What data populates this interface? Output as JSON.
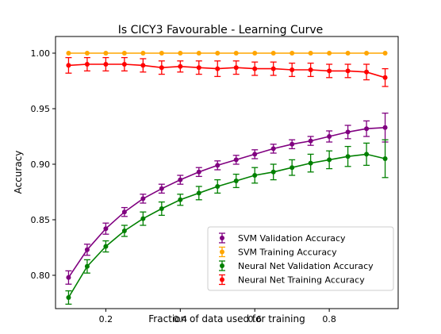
{
  "chart_data": {
    "type": "line",
    "title": "Is CICY3 Favourable - Learning Curve",
    "xlabel": "Fraction of data used for training",
    "ylabel": "Accuracy",
    "xlim": [
      0.065,
      0.985
    ],
    "ylim": [
      0.77,
      1.015
    ],
    "xticks": [
      0.2,
      0.4,
      0.6,
      0.8
    ],
    "xtick_labels": [
      "0.2",
      "0.4",
      "0.6",
      "0.8"
    ],
    "yticks": [
      0.8,
      0.85,
      0.9,
      0.95,
      1.0
    ],
    "ytick_labels": [
      "0.80",
      "0.85",
      "0.90",
      "0.95",
      "1.00"
    ],
    "grid": false,
    "legend_position": "lower-right",
    "x": [
      0.1,
      0.15,
      0.2,
      0.25,
      0.3,
      0.35,
      0.4,
      0.45,
      0.5,
      0.55,
      0.6,
      0.65,
      0.7,
      0.75,
      0.8,
      0.85,
      0.9,
      0.95
    ],
    "series": [
      {
        "name": "SVM Validation Accuracy",
        "color": "#800080",
        "values": [
          0.798,
          0.823,
          0.842,
          0.857,
          0.869,
          0.878,
          0.886,
          0.893,
          0.899,
          0.904,
          0.909,
          0.914,
          0.918,
          0.921,
          0.925,
          0.929,
          0.932,
          0.933
        ],
        "errors": [
          0.006,
          0.005,
          0.005,
          0.004,
          0.004,
          0.004,
          0.004,
          0.004,
          0.004,
          0.004,
          0.004,
          0.004,
          0.004,
          0.004,
          0.005,
          0.006,
          0.007,
          0.013
        ]
      },
      {
        "name": "SVM Training Accuracy",
        "color": "#ffa500",
        "values": [
          1.0,
          1.0,
          1.0,
          1.0,
          1.0,
          1.0,
          1.0,
          1.0,
          1.0,
          1.0,
          1.0,
          1.0,
          1.0,
          1.0,
          1.0,
          1.0,
          1.0,
          1.0
        ],
        "errors": [
          0.0,
          0.0,
          0.0,
          0.0,
          0.0,
          0.0,
          0.0,
          0.0,
          0.0,
          0.0,
          0.0,
          0.0,
          0.0,
          0.0,
          0.0,
          0.0,
          0.0,
          0.0
        ]
      },
      {
        "name": "Neural Net Validation Accuracy",
        "color": "#008000",
        "values": [
          0.78,
          0.808,
          0.826,
          0.84,
          0.851,
          0.86,
          0.868,
          0.874,
          0.88,
          0.885,
          0.89,
          0.893,
          0.897,
          0.901,
          0.904,
          0.907,
          0.909,
          0.905
        ],
        "errors": [
          0.006,
          0.006,
          0.005,
          0.005,
          0.006,
          0.006,
          0.005,
          0.006,
          0.006,
          0.006,
          0.007,
          0.007,
          0.007,
          0.008,
          0.008,
          0.009,
          0.01,
          0.017
        ]
      },
      {
        "name": "Neural Net Training Accuracy",
        "color": "#ff0000",
        "values": [
          0.989,
          0.99,
          0.99,
          0.99,
          0.989,
          0.987,
          0.988,
          0.987,
          0.986,
          0.987,
          0.986,
          0.986,
          0.985,
          0.985,
          0.984,
          0.984,
          0.983,
          0.978
        ],
        "errors": [
          0.007,
          0.006,
          0.006,
          0.006,
          0.006,
          0.006,
          0.005,
          0.006,
          0.007,
          0.006,
          0.006,
          0.006,
          0.006,
          0.006,
          0.006,
          0.006,
          0.007,
          0.008
        ]
      }
    ],
    "legend_order": [
      0,
      1,
      2,
      3
    ]
  }
}
